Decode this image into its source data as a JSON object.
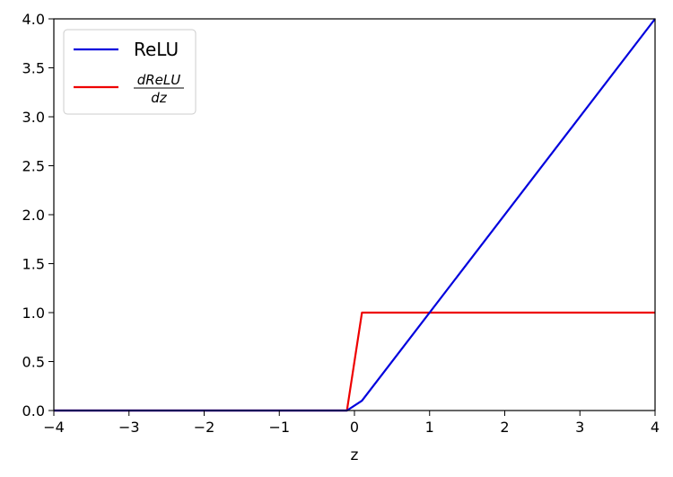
{
  "chart_data": {
    "type": "line",
    "xlabel": "z",
    "ylabel": "",
    "xlim": [
      -4,
      4
    ],
    "ylim": [
      0,
      4
    ],
    "xticks": [
      -4,
      -3,
      -2,
      -1,
      0,
      1,
      2,
      3,
      4
    ],
    "xtick_labels": [
      "−4",
      "−3",
      "−2",
      "−1",
      "0",
      "1",
      "2",
      "3",
      "4"
    ],
    "yticks": [
      0.0,
      0.5,
      1.0,
      1.5,
      2.0,
      2.5,
      3.0,
      3.5,
      4.0
    ],
    "ytick_labels": [
      "0.0",
      "0.5",
      "1.0",
      "1.5",
      "2.0",
      "2.5",
      "3.0",
      "3.5",
      "4.0"
    ],
    "grid": false,
    "legend_position": "top-left",
    "series": [
      {
        "name": "ReLU",
        "color": "#0000dd",
        "x": [
          -4,
          -0.1,
          0.1,
          4
        ],
        "y": [
          0,
          0,
          0.1,
          4
        ]
      },
      {
        "name_numerator": "dReLU",
        "name_denominator": "dz",
        "color": "#ee0000",
        "x": [
          -4,
          -0.1,
          0.1,
          4
        ],
        "y": [
          0,
          0,
          1,
          1
        ]
      }
    ]
  }
}
